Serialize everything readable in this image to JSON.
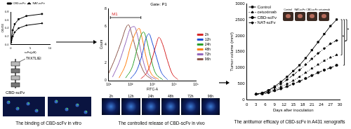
{
  "chart_data": [
    {
      "type": "line",
      "x_label": "scFv(μM)",
      "y_label": "OD450",
      "x": [
        0.1,
        0.5,
        1,
        2,
        4,
        8
      ],
      "series": [
        {
          "name": "CBD-scFv",
          "color": "#000000",
          "marker": "square",
          "values": [
            0.1,
            0.35,
            0.5,
            0.62,
            0.7,
            0.75
          ]
        },
        {
          "name": "NAT-scFv",
          "color": "#000000",
          "marker": "triangle",
          "values": [
            0.05,
            0.2,
            0.3,
            0.4,
            0.47,
            0.52
          ]
        }
      ],
      "xlim": [
        0,
        10
      ],
      "xticks": [
        0,
        5,
        10
      ],
      "ylim": [
        0,
        0.8
      ],
      "yticks": [
        {
          "value": 0,
          "label": "0.0"
        },
        0.2,
        0.4,
        0.6,
        0.8
      ],
      "grid": false,
      "legend": "top"
    },
    {
      "type": "line",
      "title": "Gate: P1",
      "x_label": "FITC-A",
      "y_label": "Count",
      "log": "x",
      "marker": "none",
      "series": [
        {
          "name": "2h",
          "color": "#d62728",
          "x": [
            300,
            600,
            1000,
            1500,
            2000,
            3000,
            5000,
            8000,
            15000
          ],
          "values": [
            0.2,
            1.0,
            2.5,
            4.0,
            4.8,
            4.0,
            2.2,
            0.8,
            0.1
          ]
        },
        {
          "name": "12h",
          "color": "#1f4fd6",
          "x": [
            100,
            200,
            350,
            500,
            700,
            1000,
            1600,
            2500,
            5000
          ],
          "values": [
            0.2,
            1.2,
            3.0,
            4.6,
            5.2,
            4.2,
            2.5,
            1.0,
            0.1
          ]
        },
        {
          "name": "24h",
          "color": "#2ca02c",
          "x": [
            60,
            120,
            200,
            300,
            400,
            550,
            800,
            1300,
            3000
          ],
          "values": [
            0.3,
            1.5,
            3.5,
            5.0,
            5.4,
            4.5,
            2.8,
            1.0,
            0.1
          ]
        },
        {
          "name": "48h",
          "color": "#ff7f0e",
          "x": [
            30,
            60,
            100,
            170,
            250,
            350,
            500,
            800,
            2000
          ],
          "values": [
            0.3,
            1.8,
            3.8,
            5.3,
            5.8,
            4.6,
            2.8,
            1.0,
            0.1
          ]
        },
        {
          "name": "72h",
          "color": "#9467bd",
          "x": [
            15,
            30,
            60,
            100,
            150,
            220,
            330,
            550,
            1500
          ],
          "values": [
            0.4,
            2.0,
            4.2,
            5.8,
            6.0,
            4.8,
            2.8,
            1.0,
            0.1
          ]
        },
        {
          "name": "96h",
          "color": "#8c564b",
          "x": [
            10,
            20,
            40,
            60,
            80,
            120,
            200,
            400,
            1000
          ],
          "values": [
            0.8,
            2.5,
            4.5,
            5.8,
            6.2,
            5.0,
            3.0,
            1.0,
            0.1
          ]
        }
      ],
      "xlim": [
        10,
        100000
      ],
      "xticks": [
        {
          "value": 10,
          "label": "10¹"
        },
        {
          "value": 100,
          "label": "10²"
        },
        {
          "value": 1000,
          "label": "10³"
        },
        {
          "value": 10000,
          "label": "10⁴"
        },
        {
          "value": 100000,
          "label": "10⁵"
        }
      ],
      "ylim": [
        0,
        8
      ],
      "yticks": [
        0,
        2,
        4,
        6,
        8
      ],
      "grid": false,
      "legend": "right",
      "annotations": [
        {
          "label": "M1",
          "from": 12,
          "to": 300,
          "y": 7
        }
      ]
    },
    {
      "type": "line",
      "x_label": "Days after inoculation",
      "y_label": "Tumor volume (mm³)",
      "x": [
        3,
        5,
        7,
        9,
        11,
        13,
        15,
        17,
        19,
        21,
        23,
        25,
        27,
        29
      ],
      "series": [
        {
          "name": "Control",
          "color": "#000000",
          "marker": "square",
          "line_style": "solid",
          "values": [
            180,
            220,
            300,
            420,
            560,
            720,
            900,
            1080,
            1300,
            1550,
            1800,
            2050,
            2300,
            2500
          ]
        },
        {
          "name": "cetuximab",
          "color": "#000000",
          "marker": "triangle",
          "line_style": "dotted",
          "values": [
            180,
            200,
            250,
            320,
            410,
            500,
            600,
            720,
            850,
            980,
            1100,
            1220,
            1320,
            1400
          ]
        },
        {
          "name": "CBD-scFv",
          "color": "#000000",
          "marker": "circle",
          "line_style": "dashed",
          "values": [
            180,
            190,
            230,
            290,
            350,
            420,
            500,
            580,
            670,
            760,
            850,
            930,
            1000,
            1080
          ]
        },
        {
          "name": "NAT-scFv",
          "color": "#000000",
          "marker": "diamond",
          "line_style": "dashdot",
          "values": [
            180,
            210,
            280,
            380,
            500,
            630,
            780,
            930,
            1100,
            1280,
            1450,
            1600,
            1750,
            1850
          ]
        }
      ],
      "xlim": [
        0,
        30
      ],
      "xticks": [
        0,
        3,
        6,
        9,
        12,
        15,
        18,
        21,
        24,
        27,
        30
      ],
      "ylim": [
        0,
        3000
      ],
      "yticks": [
        0,
        500,
        1000,
        1500,
        2000,
        2500,
        3000
      ],
      "grid": false,
      "legend": "top-left",
      "annotations": [
        "*",
        "*",
        "*"
      ]
    }
  ],
  "panels": {
    "binding": {
      "sequence": "TKKTLIEI",
      "construct": "CBD-scFv",
      "caption": "The binding of CBD-scFv in vitro"
    },
    "release": {
      "image_labels": [
        "2h",
        "12h",
        "24h",
        "48h",
        "72h",
        "96h"
      ],
      "caption": "The controlled release of CBD-scFv in vivo"
    },
    "efficacy": {
      "photo_labels": [
        "Control",
        "NAT-scFv",
        "CBD-scFv",
        "cetuximab"
      ],
      "caption": "The antitumor efficacy of CBD-scFv in A431 xenografts"
    }
  }
}
